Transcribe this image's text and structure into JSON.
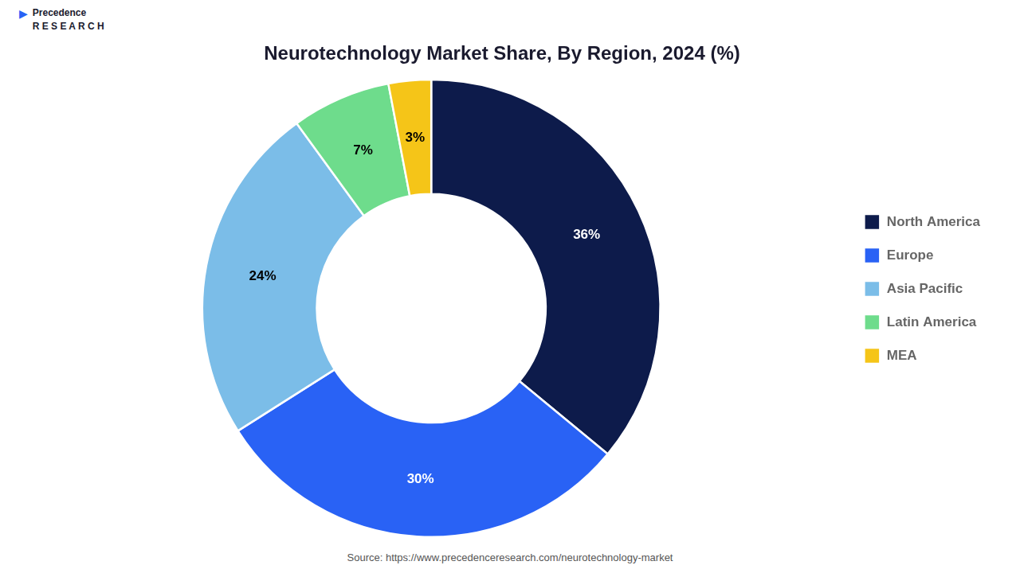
{
  "chart_data": {
    "type": "doughnut",
    "title": "Neurotechnology Market Share, By Region, 2024 (%)",
    "categories": [
      "North America",
      "Europe",
      "Asia Pacific",
      "Latin America",
      "MEA"
    ],
    "values": [
      36,
      30,
      24,
      7,
      3
    ],
    "value_labels": [
      "36%",
      "30%",
      "24%",
      "7%",
      "3%"
    ],
    "data_labels": true,
    "colors": [
      "#0d1b4b",
      "#2962f5",
      "#7bbde8",
      "#6edc8c",
      "#f5c518"
    ],
    "legend": "right",
    "annotations": [
      "▶",
      "Precedence\nR E S E A R C H",
      "Source: https://www.precedenceresearch.com/neurotechnology-market"
    ]
  }
}
